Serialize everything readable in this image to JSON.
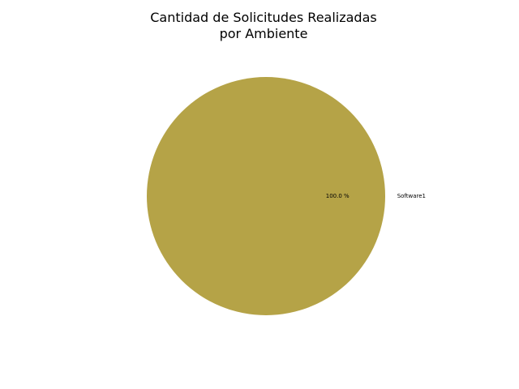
{
  "chart_data": {
    "type": "pie",
    "title_lines": [
      "Cantidad de Solicitudes Realizadas",
      "por Ambiente"
    ],
    "slices": [
      {
        "label": "Software1",
        "value": 100.0,
        "pct_label": "100.0 %",
        "color": "#b5a347"
      }
    ],
    "legend": "none"
  }
}
